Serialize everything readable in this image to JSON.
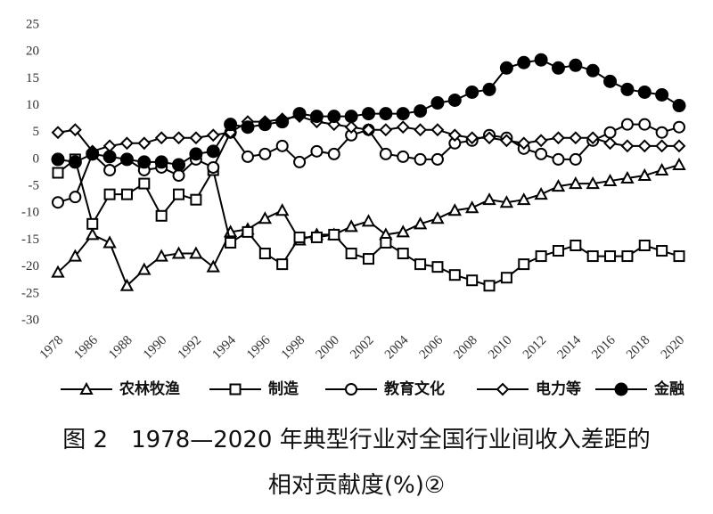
{
  "chart_data": {
    "type": "line",
    "categories": [
      "1978",
      null,
      "1986",
      null,
      "1988",
      null,
      "1990",
      null,
      "1992",
      null,
      "1994",
      null,
      "1996",
      null,
      "1998",
      null,
      "2000",
      null,
      "2002",
      null,
      "2004",
      null,
      "2006",
      null,
      "2008",
      null,
      "2010",
      null,
      "2012",
      null,
      "2014",
      null,
      "2016",
      null,
      "2018",
      null,
      "2020"
    ],
    "ylim": [
      -30,
      25
    ],
    "yticks": [
      -30,
      -25,
      -20,
      -15,
      -10,
      -5,
      0,
      5,
      10,
      15,
      20,
      25
    ],
    "grid": false,
    "legend": "bottom",
    "series": [
      {
        "name": "农林牧渔",
        "color": "#000000",
        "marker": "triangle",
        "values": [
          -21,
          -18,
          -14,
          -15.5,
          -23.5,
          -20.5,
          -18,
          -17.5,
          -17.5,
          -20,
          -13.5,
          -13,
          -11,
          -9.5,
          -15,
          -14,
          -14,
          -12.5,
          -11.5,
          -14,
          -13.5,
          -12,
          -11,
          -9.5,
          -9,
          -7.5,
          -8,
          -7.5,
          -6.5,
          -5,
          -4.5,
          -4.5,
          -4,
          -3.5,
          -3,
          -2,
          -1
        ]
      },
      {
        "name": "制造",
        "color": "#000000",
        "marker": "square",
        "values": [
          -2.5,
          0,
          -12,
          -6.5,
          -6.5,
          -4.5,
          -10.5,
          -6.5,
          -7.5,
          -2,
          -15.5,
          -13.5,
          -17.5,
          -19.5,
          -14.5,
          -14.5,
          -14,
          -17.5,
          -18.5,
          -15.5,
          -17.5,
          -19.5,
          -20,
          -21.5,
          -22.5,
          -23.5,
          -22,
          -19.5,
          -18,
          -17,
          -16,
          -18,
          -18,
          -18,
          -16,
          -17,
          -18
        ]
      },
      {
        "name": "教育文化",
        "color": "#000000",
        "marker": "circle",
        "values": [
          -8,
          -7,
          1,
          -2,
          0,
          -2,
          -1.5,
          -3,
          0,
          -1.5,
          5,
          0.5,
          1,
          2.5,
          -0.5,
          1.5,
          1,
          4.5,
          5.5,
          1,
          0.5,
          0,
          0,
          3,
          3.5,
          4.5,
          4,
          2,
          1,
          0,
          0,
          3.5,
          5,
          6.5,
          6.5,
          5,
          6
        ]
      },
      {
        "name": "电力等",
        "color": "#000000",
        "marker": "diamond",
        "values": [
          5,
          5.5,
          1.5,
          2.5,
          3,
          3,
          4,
          4,
          4,
          4.5,
          5,
          7,
          7,
          7.5,
          8,
          7,
          6.5,
          6,
          5.5,
          5.5,
          6,
          5.5,
          5.5,
          4.5,
          4,
          4,
          3.5,
          3,
          3.5,
          4,
          4,
          4,
          3,
          2.5,
          2.5,
          2.5,
          2.5
        ]
      },
      {
        "name": "金融",
        "color": "#000000",
        "marker": "filled-circle",
        "values": [
          0,
          -0.5,
          1,
          0.5,
          0,
          -0.5,
          -0.5,
          -1,
          1,
          1.5,
          6.5,
          6,
          6.5,
          7,
          8.5,
          8,
          8,
          8,
          8.5,
          8.5,
          8.5,
          9,
          10.5,
          11,
          12.5,
          13,
          17,
          18,
          18.5,
          17,
          17.5,
          16.5,
          14.5,
          13,
          12.5,
          12,
          10
        ]
      }
    ],
    "caption": [
      "图 2　1978—2020 年典型行业对全国行业间收入差距的",
      "相对贡献度(%)②"
    ]
  }
}
